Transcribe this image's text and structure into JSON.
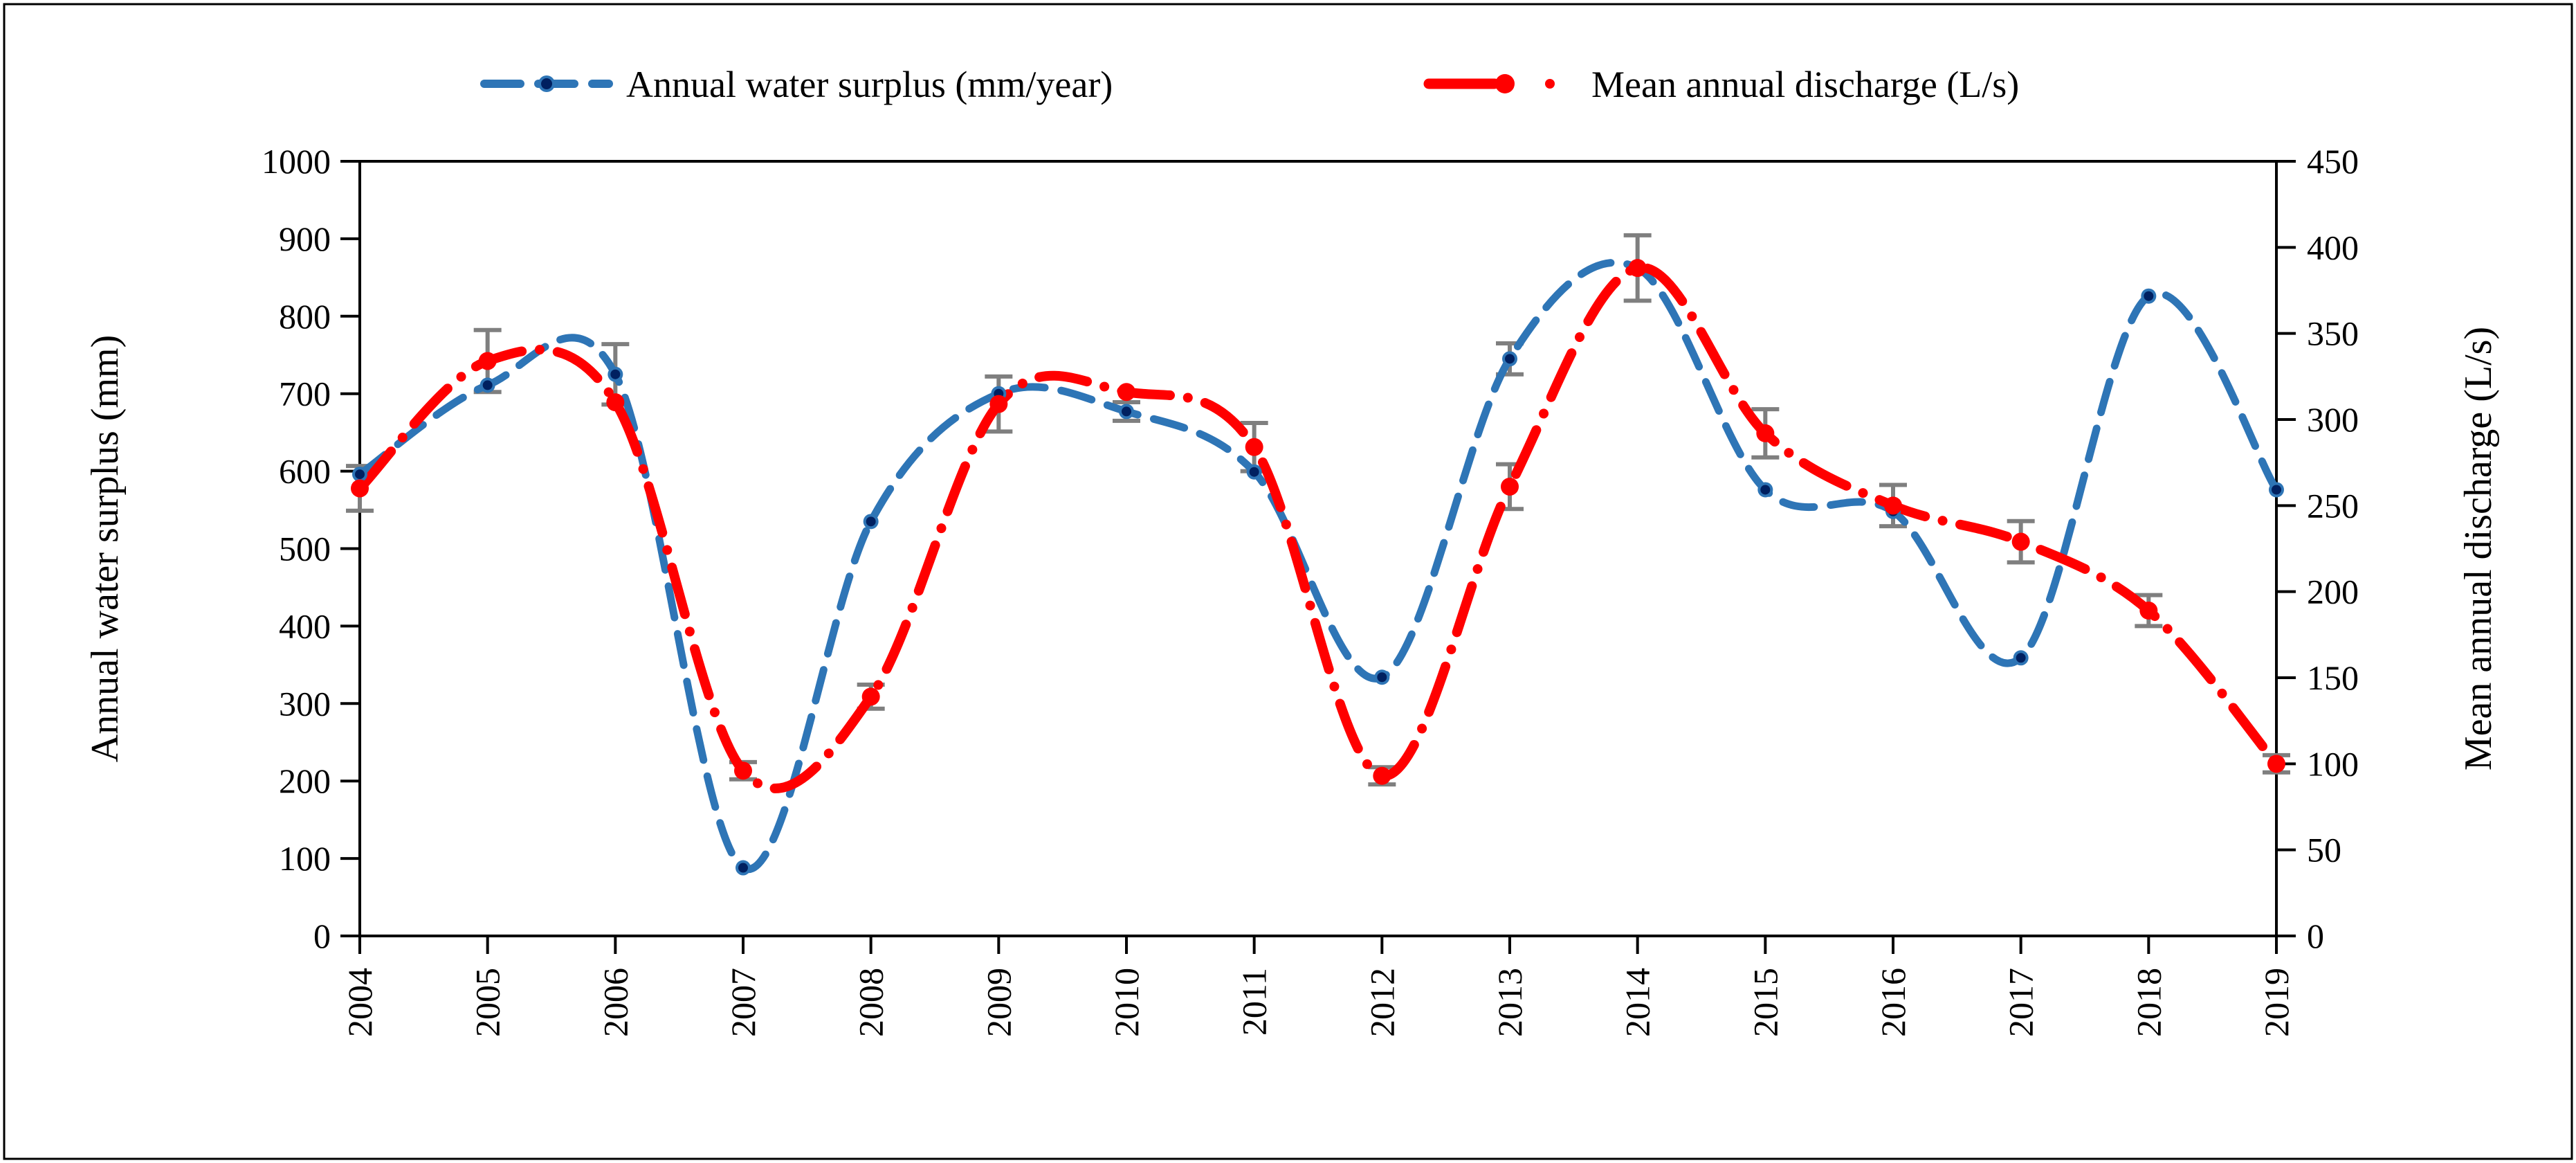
{
  "figure": {
    "background": "#ffffff",
    "border_color": "#000000"
  },
  "legend": {
    "position": "top",
    "items": [
      {
        "label": "Annual water surplus (mm/year)",
        "line_color": "#2E75B6",
        "marker_outer": "#2E75B6",
        "marker_inner": "#002060",
        "style": "dashed"
      },
      {
        "label": "Mean annual discharge (L/s)",
        "line_color": "#FF0000",
        "marker_outer": "#FF0000",
        "marker_inner": "#FF0000",
        "style": "dash-dot"
      }
    ]
  },
  "chart_data": {
    "type": "line",
    "smooth": true,
    "grid": false,
    "error_bar_color": "#7F7F7F",
    "x_axis": {
      "labels": [
        "2004",
        "2005",
        "2006",
        "2007",
        "2008",
        "2009",
        "2010",
        "2011",
        "2012",
        "2013",
        "2014",
        "2015",
        "2016",
        "2017",
        "2018",
        "2019"
      ]
    },
    "left_axis": {
      "label": "Annual water surplus (mm)",
      "min": 0,
      "max": 1000,
      "step": 100,
      "ticks": [
        "0",
        "100",
        "200",
        "300",
        "400",
        "500",
        "600",
        "700",
        "800",
        "900",
        "1000"
      ]
    },
    "right_axis": {
      "label": "Mean annual discharge (L/s)",
      "min": 0,
      "max": 450,
      "step": 50,
      "ticks": [
        "0",
        "50",
        "100",
        "150",
        "200",
        "250",
        "300",
        "350",
        "400",
        "450"
      ]
    },
    "series": [
      {
        "name": "Annual water surplus (mm/year)",
        "axis": "left",
        "color": "#2E75B6",
        "marker_inner": "#002060",
        "line_style": "dashed",
        "values": [
          596,
          711,
          725,
          88,
          535,
          700,
          677,
          599,
          334,
          745,
          862,
          576,
          548,
          359,
          826,
          576
        ],
        "errors": [
          0,
          0,
          39,
          0,
          0,
          0,
          12,
          0,
          0,
          20,
          0,
          0,
          0,
          0,
          0,
          0
        ]
      },
      {
        "name": "Mean annual discharge (L/s)",
        "axis": "right",
        "color": "#FF0000",
        "marker_inner": "#FF0000",
        "line_style": "dash-dot",
        "values": [
          260,
          334,
          310,
          96,
          139,
          309,
          316,
          284,
          93,
          261,
          388,
          292,
          250,
          229,
          189,
          100
        ],
        "errors": [
          13,
          18,
          0,
          5,
          7,
          16,
          0,
          14,
          5,
          13,
          19,
          14,
          12,
          12,
          9,
          5
        ]
      }
    ]
  }
}
